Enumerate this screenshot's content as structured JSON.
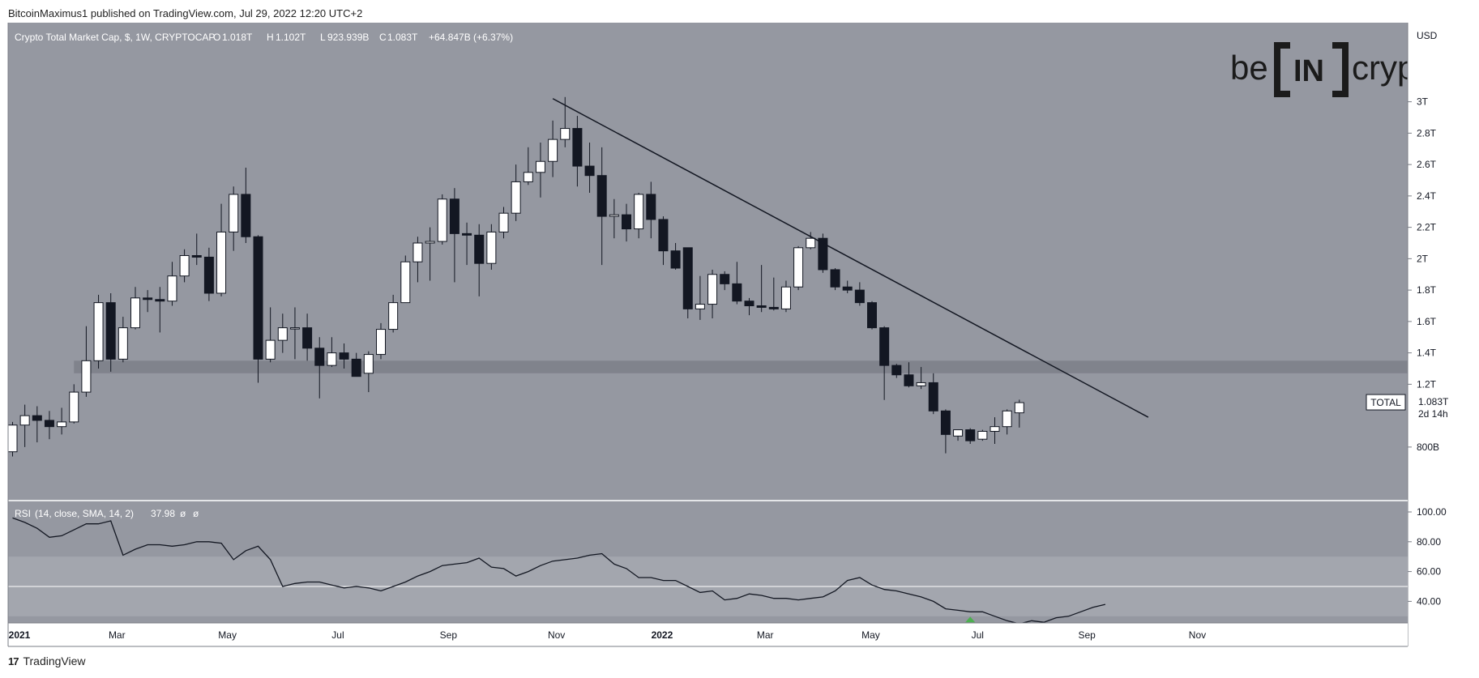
{
  "header": {
    "published_by": "BitcoinMaximus1 published on TradingView.com, Jul 29, 2022 12:20 UTC+2"
  },
  "footer": {
    "brand": "TradingView",
    "logo_icon": "tradingview-logo-icon"
  },
  "colors": {
    "panel_bg": "#9598a1",
    "rsi_band": "#a3a6ae",
    "support_band": "#7c7f88",
    "bull_candle": "#ffffff",
    "bear_candle": "#131722",
    "line": "#131722",
    "signal_arrow": "#4caf50"
  },
  "watermark": {
    "text_left": "be",
    "text_mid": "IN",
    "text_right": "crypto"
  },
  "chart_data": [
    {
      "type": "candlestick",
      "title": "Crypto Total Market Cap, $, 1W, CRYPTOCAP",
      "ohlc_label": {
        "o_key": "O",
        "o": "1.018T",
        "h_key": "H",
        "h": "1.102T",
        "l_key": "L",
        "l": "923.939B",
        "c_key": "C",
        "c": "1.083T",
        "change": "+64.847B (+6.37%)"
      },
      "currency_label": "USD",
      "y_unit": "trillion USD",
      "ylim": [
        0.7,
        3.1
      ],
      "y_ticks": [
        {
          "v": 3.0,
          "label": "3T"
        },
        {
          "v": 2.8,
          "label": "2.8T"
        },
        {
          "v": 2.6,
          "label": "2.6T"
        },
        {
          "v": 2.4,
          "label": "2.4T"
        },
        {
          "v": 2.2,
          "label": "2.2T"
        },
        {
          "v": 2.0,
          "label": "2T"
        },
        {
          "v": 1.8,
          "label": "1.8T"
        },
        {
          "v": 1.6,
          "label": "1.6T"
        },
        {
          "v": 1.4,
          "label": "1.4T"
        },
        {
          "v": 1.2,
          "label": "1.2T"
        },
        {
          "v": 0.8,
          "label": "800B"
        }
      ],
      "x_ticks": [
        {
          "week": 0,
          "label": "2021",
          "bold": true
        },
        {
          "week": 8.5,
          "label": "Mar",
          "bold": false
        },
        {
          "week": 17.5,
          "label": "May",
          "bold": false
        },
        {
          "week": 26.5,
          "label": "Jul",
          "bold": false
        },
        {
          "week": 35.5,
          "label": "Sep",
          "bold": false
        },
        {
          "week": 44.3,
          "label": "Nov",
          "bold": false
        },
        {
          "week": 52.9,
          "label": "2022",
          "bold": true
        },
        {
          "week": 61.3,
          "label": "Mar",
          "bold": false
        },
        {
          "week": 69.9,
          "label": "May",
          "bold": false
        },
        {
          "week": 78.6,
          "label": "Jul",
          "bold": false
        },
        {
          "week": 87.5,
          "label": "Sep",
          "bold": false
        },
        {
          "week": 96.5,
          "label": "Nov",
          "bold": false
        }
      ],
      "price_tag": {
        "name": "TOTAL",
        "value": "1.083T",
        "countdown": "2d 14h",
        "level": 1.083
      },
      "support_zone": {
        "low": 1.27,
        "high": 1.35,
        "from_week": 5
      },
      "trendline": {
        "from_week": 44,
        "from_value": 3.02,
        "to_week": 92.5,
        "to_value": 0.99
      },
      "candles": [
        {
          "o": 0.77,
          "h": 0.96,
          "l": 0.74,
          "c": 0.94
        },
        {
          "o": 0.94,
          "h": 1.07,
          "l": 0.8,
          "c": 1.0
        },
        {
          "o": 1.0,
          "h": 1.06,
          "l": 0.83,
          "c": 0.97
        },
        {
          "o": 0.97,
          "h": 1.03,
          "l": 0.85,
          "c": 0.93
        },
        {
          "o": 0.93,
          "h": 1.05,
          "l": 0.88,
          "c": 0.96
        },
        {
          "o": 0.96,
          "h": 1.2,
          "l": 0.95,
          "c": 1.15
        },
        {
          "o": 1.15,
          "h": 1.57,
          "l": 1.12,
          "c": 1.35
        },
        {
          "o": 1.35,
          "h": 1.77,
          "l": 1.3,
          "c": 1.72
        },
        {
          "o": 1.72,
          "h": 1.78,
          "l": 1.28,
          "c": 1.36
        },
        {
          "o": 1.36,
          "h": 1.63,
          "l": 1.34,
          "c": 1.56
        },
        {
          "o": 1.56,
          "h": 1.82,
          "l": 1.55,
          "c": 1.75
        },
        {
          "o": 1.75,
          "h": 1.8,
          "l": 1.66,
          "c": 1.74
        },
        {
          "o": 1.74,
          "h": 1.82,
          "l": 1.53,
          "c": 1.73
        },
        {
          "o": 1.73,
          "h": 1.98,
          "l": 1.7,
          "c": 1.89
        },
        {
          "o": 1.89,
          "h": 2.06,
          "l": 1.85,
          "c": 2.02
        },
        {
          "o": 2.02,
          "h": 2.16,
          "l": 1.96,
          "c": 2.01
        },
        {
          "o": 2.01,
          "h": 2.07,
          "l": 1.73,
          "c": 1.78
        },
        {
          "o": 1.78,
          "h": 2.35,
          "l": 1.76,
          "c": 2.17
        },
        {
          "o": 2.17,
          "h": 2.46,
          "l": 2.05,
          "c": 2.41
        },
        {
          "o": 2.41,
          "h": 2.58,
          "l": 2.1,
          "c": 2.14
        },
        {
          "o": 2.14,
          "h": 2.15,
          "l": 1.21,
          "c": 1.36
        },
        {
          "o": 1.36,
          "h": 1.69,
          "l": 1.34,
          "c": 1.48
        },
        {
          "o": 1.48,
          "h": 1.65,
          "l": 1.4,
          "c": 1.56
        },
        {
          "o": 1.56,
          "h": 1.69,
          "l": 1.36,
          "c": 1.56
        },
        {
          "o": 1.56,
          "h": 1.65,
          "l": 1.35,
          "c": 1.43
        },
        {
          "o": 1.43,
          "h": 1.5,
          "l": 1.11,
          "c": 1.32
        },
        {
          "o": 1.32,
          "h": 1.5,
          "l": 1.31,
          "c": 1.4
        },
        {
          "o": 1.4,
          "h": 1.46,
          "l": 1.3,
          "c": 1.36
        },
        {
          "o": 1.36,
          "h": 1.4,
          "l": 1.25,
          "c": 1.25
        },
        {
          "o": 1.27,
          "h": 1.41,
          "l": 1.15,
          "c": 1.39
        },
        {
          "o": 1.39,
          "h": 1.59,
          "l": 1.36,
          "c": 1.55
        },
        {
          "o": 1.55,
          "h": 1.77,
          "l": 1.53,
          "c": 1.72
        },
        {
          "o": 1.72,
          "h": 2.02,
          "l": 1.72,
          "c": 1.98
        },
        {
          "o": 1.98,
          "h": 2.14,
          "l": 1.85,
          "c": 2.1
        },
        {
          "o": 2.1,
          "h": 2.2,
          "l": 1.86,
          "c": 2.11
        },
        {
          "o": 2.11,
          "h": 2.41,
          "l": 2.09,
          "c": 2.38
        },
        {
          "o": 2.38,
          "h": 2.45,
          "l": 1.85,
          "c": 2.16
        },
        {
          "o": 2.16,
          "h": 2.23,
          "l": 1.96,
          "c": 2.15
        },
        {
          "o": 2.15,
          "h": 2.22,
          "l": 1.76,
          "c": 1.97
        },
        {
          "o": 1.97,
          "h": 2.22,
          "l": 1.93,
          "c": 2.17
        },
        {
          "o": 2.17,
          "h": 2.33,
          "l": 2.13,
          "c": 2.29
        },
        {
          "o": 2.29,
          "h": 2.6,
          "l": 2.24,
          "c": 2.49
        },
        {
          "o": 2.49,
          "h": 2.71,
          "l": 2.47,
          "c": 2.55
        },
        {
          "o": 2.55,
          "h": 2.74,
          "l": 2.39,
          "c": 2.62
        },
        {
          "o": 2.62,
          "h": 2.88,
          "l": 2.52,
          "c": 2.76
        },
        {
          "o": 2.76,
          "h": 3.03,
          "l": 2.71,
          "c": 2.83
        },
        {
          "o": 2.83,
          "h": 2.91,
          "l": 2.46,
          "c": 2.59
        },
        {
          "o": 2.59,
          "h": 2.74,
          "l": 2.42,
          "c": 2.53
        },
        {
          "o": 2.53,
          "h": 2.71,
          "l": 1.96,
          "c": 2.27
        },
        {
          "o": 2.27,
          "h": 2.38,
          "l": 2.13,
          "c": 2.28
        },
        {
          "o": 2.28,
          "h": 2.35,
          "l": 2.11,
          "c": 2.19
        },
        {
          "o": 2.19,
          "h": 2.42,
          "l": 2.13,
          "c": 2.41
        },
        {
          "o": 2.41,
          "h": 2.49,
          "l": 2.13,
          "c": 2.25
        },
        {
          "o": 2.25,
          "h": 2.27,
          "l": 1.96,
          "c": 2.05
        },
        {
          "o": 2.05,
          "h": 2.1,
          "l": 1.93,
          "c": 1.94
        },
        {
          "o": 2.07,
          "h": 2.07,
          "l": 1.62,
          "c": 1.68
        },
        {
          "o": 1.68,
          "h": 1.89,
          "l": 1.61,
          "c": 1.71
        },
        {
          "o": 1.71,
          "h": 1.93,
          "l": 1.62,
          "c": 1.9
        },
        {
          "o": 1.9,
          "h": 1.92,
          "l": 1.8,
          "c": 1.84
        },
        {
          "o": 1.84,
          "h": 1.98,
          "l": 1.71,
          "c": 1.73
        },
        {
          "o": 1.73,
          "h": 1.75,
          "l": 1.64,
          "c": 1.7
        },
        {
          "o": 1.7,
          "h": 1.96,
          "l": 1.66,
          "c": 1.69
        },
        {
          "o": 1.69,
          "h": 1.88,
          "l": 1.67,
          "c": 1.68
        },
        {
          "o": 1.68,
          "h": 1.86,
          "l": 1.66,
          "c": 1.82
        },
        {
          "o": 1.82,
          "h": 2.08,
          "l": 1.8,
          "c": 2.07
        },
        {
          "o": 2.07,
          "h": 2.17,
          "l": 2.06,
          "c": 2.13
        },
        {
          "o": 2.13,
          "h": 2.16,
          "l": 1.91,
          "c": 1.93
        },
        {
          "o": 1.93,
          "h": 1.94,
          "l": 1.8,
          "c": 1.82
        },
        {
          "o": 1.82,
          "h": 1.86,
          "l": 1.78,
          "c": 1.8
        },
        {
          "o": 1.8,
          "h": 1.85,
          "l": 1.7,
          "c": 1.72
        },
        {
          "o": 1.72,
          "h": 1.73,
          "l": 1.55,
          "c": 1.56
        },
        {
          "o": 1.56,
          "h": 1.57,
          "l": 1.1,
          "c": 1.32
        },
        {
          "o": 1.32,
          "h": 1.33,
          "l": 1.24,
          "c": 1.26
        },
        {
          "o": 1.26,
          "h": 1.34,
          "l": 1.18,
          "c": 1.19
        },
        {
          "o": 1.19,
          "h": 1.31,
          "l": 1.17,
          "c": 1.21
        },
        {
          "o": 1.21,
          "h": 1.27,
          "l": 1.01,
          "c": 1.03
        },
        {
          "o": 1.03,
          "h": 1.04,
          "l": 0.76,
          "c": 0.88
        },
        {
          "o": 0.87,
          "h": 0.91,
          "l": 0.84,
          "c": 0.91
        },
        {
          "o": 0.91,
          "h": 0.92,
          "l": 0.82,
          "c": 0.84
        },
        {
          "o": 0.85,
          "h": 0.91,
          "l": 0.84,
          "c": 0.9
        },
        {
          "o": 0.9,
          "h": 0.99,
          "l": 0.82,
          "c": 0.93
        },
        {
          "o": 0.93,
          "h": 1.04,
          "l": 0.88,
          "c": 1.03
        },
        {
          "o": 1.018,
          "h": 1.102,
          "l": 0.924,
          "c": 1.083
        }
      ]
    },
    {
      "type": "line",
      "title": "RSI",
      "params": "(14, close, SMA, 14, 2)",
      "value": "37.98",
      "extra": [
        "ø",
        "ø"
      ],
      "ylim": [
        20,
        100
      ],
      "band": [
        30,
        70
      ],
      "midline": 50,
      "y_ticks": [
        {
          "v": 100,
          "label": "100.00"
        },
        {
          "v": 80,
          "label": "80.00"
        },
        {
          "v": 60,
          "label": "60.00"
        },
        {
          "v": 40,
          "label": "40.00"
        }
      ],
      "signal_week": 78,
      "values": [
        96,
        93,
        89,
        83,
        84,
        88,
        92,
        92,
        94,
        71,
        75,
        78,
        78,
        77,
        78,
        80,
        80,
        79,
        68,
        74,
        77,
        68,
        50,
        52,
        53,
        53,
        51,
        49,
        50,
        49,
        47,
        50,
        53,
        57,
        60,
        64,
        65,
        66,
        69,
        63,
        62,
        57,
        60,
        64,
        67,
        68,
        69,
        71,
        72,
        65,
        62,
        56,
        56,
        54,
        54,
        50,
        46,
        47,
        41,
        42,
        45,
        44,
        42,
        42,
        41,
        42,
        43,
        47,
        54,
        56,
        51,
        48,
        47,
        45,
        43,
        40,
        35,
        34,
        33,
        33,
        30,
        27,
        25,
        27,
        26,
        29,
        30,
        33,
        36,
        38
      ]
    }
  ]
}
